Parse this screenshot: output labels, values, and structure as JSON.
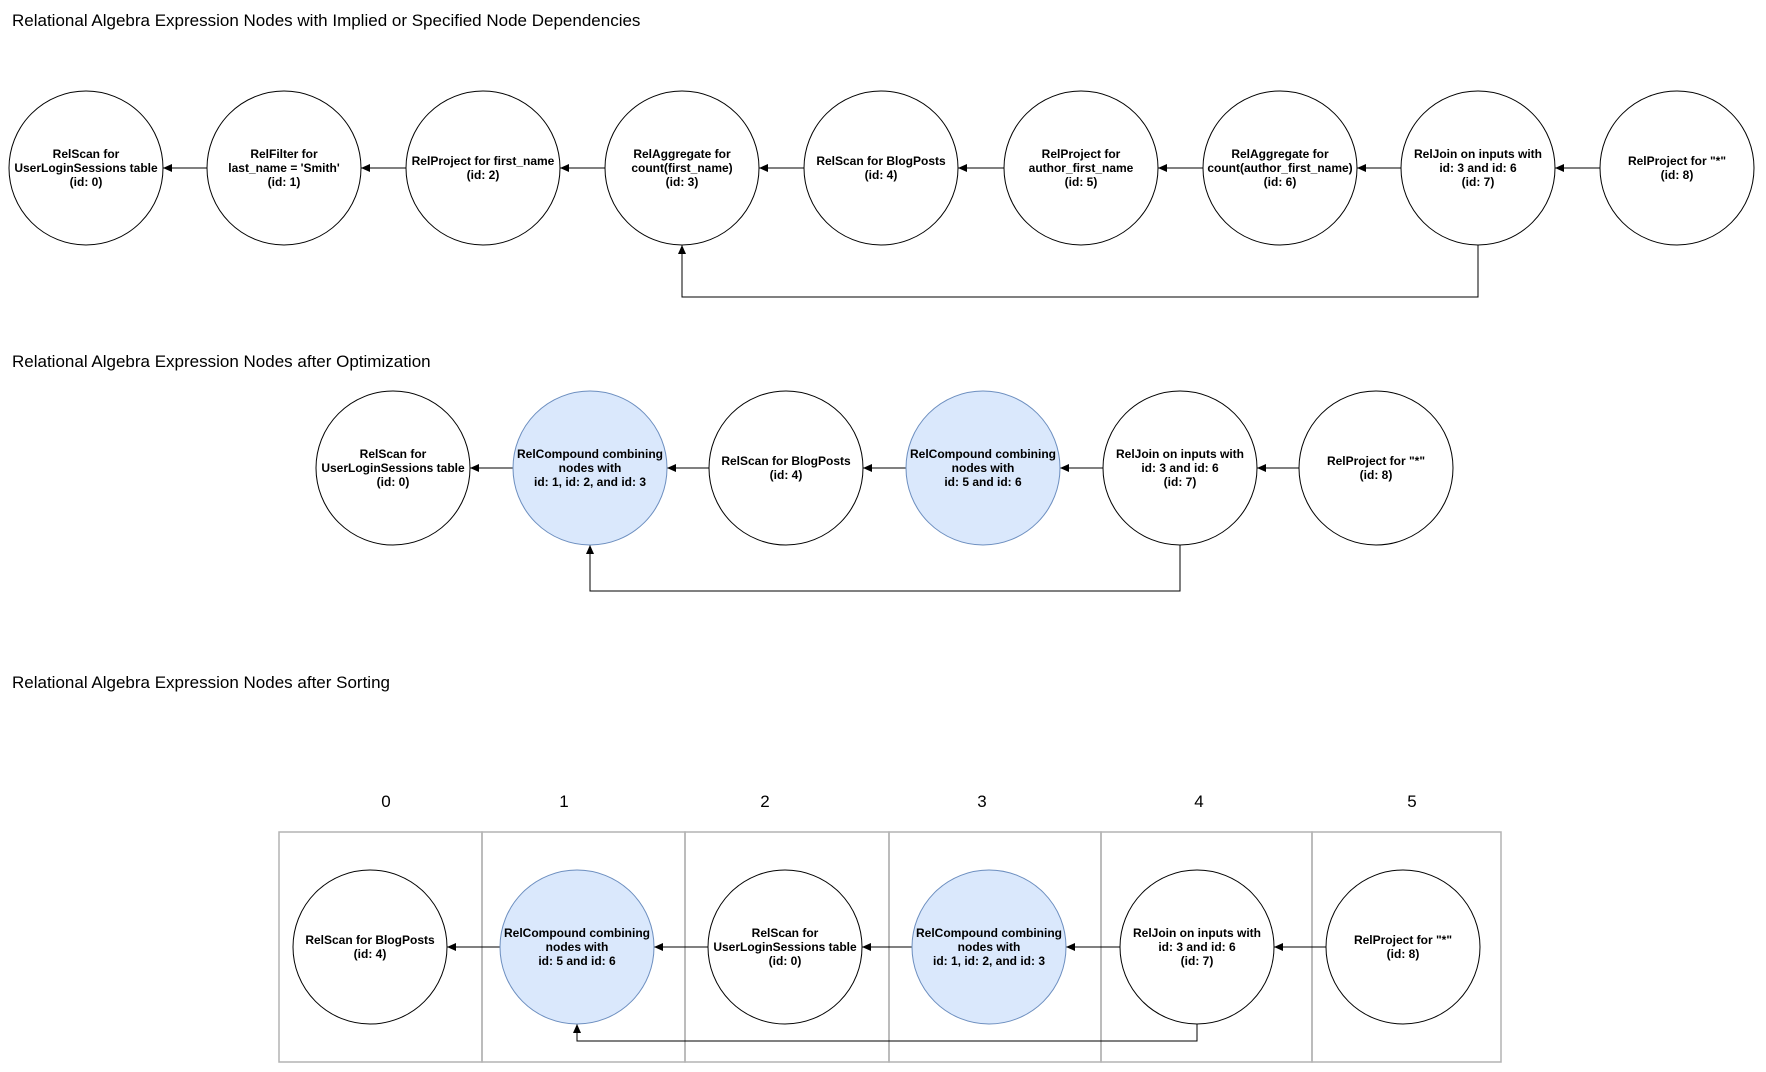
{
  "diagram": {
    "titles": {
      "implied": "Relational Algebra Expression Nodes with Implied or Specified Node Dependencies",
      "optimized": "Relational Algebra Expression Nodes after Optimization",
      "sorted": "Relational Algebra Expression Nodes after Sorting"
    },
    "colors": {
      "plain_fill": "#ffffff",
      "compound_fill": "#dae8fc",
      "compound_stroke": "#6c8ebf",
      "stroke": "#000000",
      "grid_stroke": "#b3b3b3"
    },
    "row1": [
      {
        "id": "n0",
        "lines": [
          "RelScan for",
          "UserLoginSessions table",
          "(id: 0)"
        ]
      },
      {
        "id": "n1",
        "lines": [
          "RelFilter for",
          "last_name = 'Smith'",
          "(id: 1)"
        ]
      },
      {
        "id": "n2",
        "lines": [
          "RelProject for first_name",
          "(id: 2)"
        ]
      },
      {
        "id": "n3",
        "lines": [
          "RelAggregate for",
          "count(first_name)",
          "(id: 3)"
        ]
      },
      {
        "id": "n4",
        "lines": [
          "RelScan for BlogPosts",
          "(id: 4)"
        ]
      },
      {
        "id": "n5",
        "lines": [
          "RelProject for",
          "author_first_name",
          "(id: 5)"
        ]
      },
      {
        "id": "n6",
        "lines": [
          "RelAggregate for",
          "count(author_first_name)",
          "(id: 6)"
        ]
      },
      {
        "id": "n7",
        "lines": [
          "RelJoin on inputs with",
          "id: 3 and id: 6",
          "(id: 7)"
        ]
      },
      {
        "id": "n8",
        "lines": [
          "RelProject for \"*\"",
          "(id: 8)"
        ]
      }
    ],
    "row2": [
      {
        "id": "o0",
        "lines": [
          "RelScan for",
          "UserLoginSessions table",
          "(id: 0)"
        ],
        "compound": false
      },
      {
        "id": "o1",
        "lines": [
          "RelCompound combining",
          "nodes with",
          "id: 1, id: 2, and id: 3"
        ],
        "compound": true
      },
      {
        "id": "o4",
        "lines": [
          "RelScan for BlogPosts",
          "(id: 4)"
        ],
        "compound": false
      },
      {
        "id": "o5",
        "lines": [
          "RelCompound combining",
          "nodes with",
          "id: 5 and id: 6"
        ],
        "compound": true
      },
      {
        "id": "o7",
        "lines": [
          "RelJoin on inputs with",
          "id: 3 and id: 6",
          "(id: 7)"
        ],
        "compound": false
      },
      {
        "id": "o8",
        "lines": [
          "RelProject for \"*\"",
          "(id: 8)"
        ],
        "compound": false
      }
    ],
    "row3": {
      "columns": [
        "0",
        "1",
        "2",
        "3",
        "4",
        "5"
      ],
      "nodes": [
        {
          "id": "s4",
          "lines": [
            "RelScan for BlogPosts",
            "(id: 4)"
          ],
          "compound": false
        },
        {
          "id": "s5",
          "lines": [
            "RelCompound combining",
            "nodes with",
            "id: 5 and id: 6"
          ],
          "compound": true
        },
        {
          "id": "s0",
          "lines": [
            "RelScan for",
            "UserLoginSessions table",
            "(id: 0)"
          ],
          "compound": false
        },
        {
          "id": "s1",
          "lines": [
            "RelCompound combining",
            "nodes with",
            "id: 1, id: 2, and id: 3"
          ],
          "compound": true
        },
        {
          "id": "s7",
          "lines": [
            "RelJoin on inputs with",
            "id: 3 and id: 6",
            "(id: 7)"
          ],
          "compound": false
        },
        {
          "id": "s8",
          "lines": [
            "RelProject for \"*\"",
            "(id: 8)"
          ],
          "compound": false
        }
      ]
    }
  }
}
